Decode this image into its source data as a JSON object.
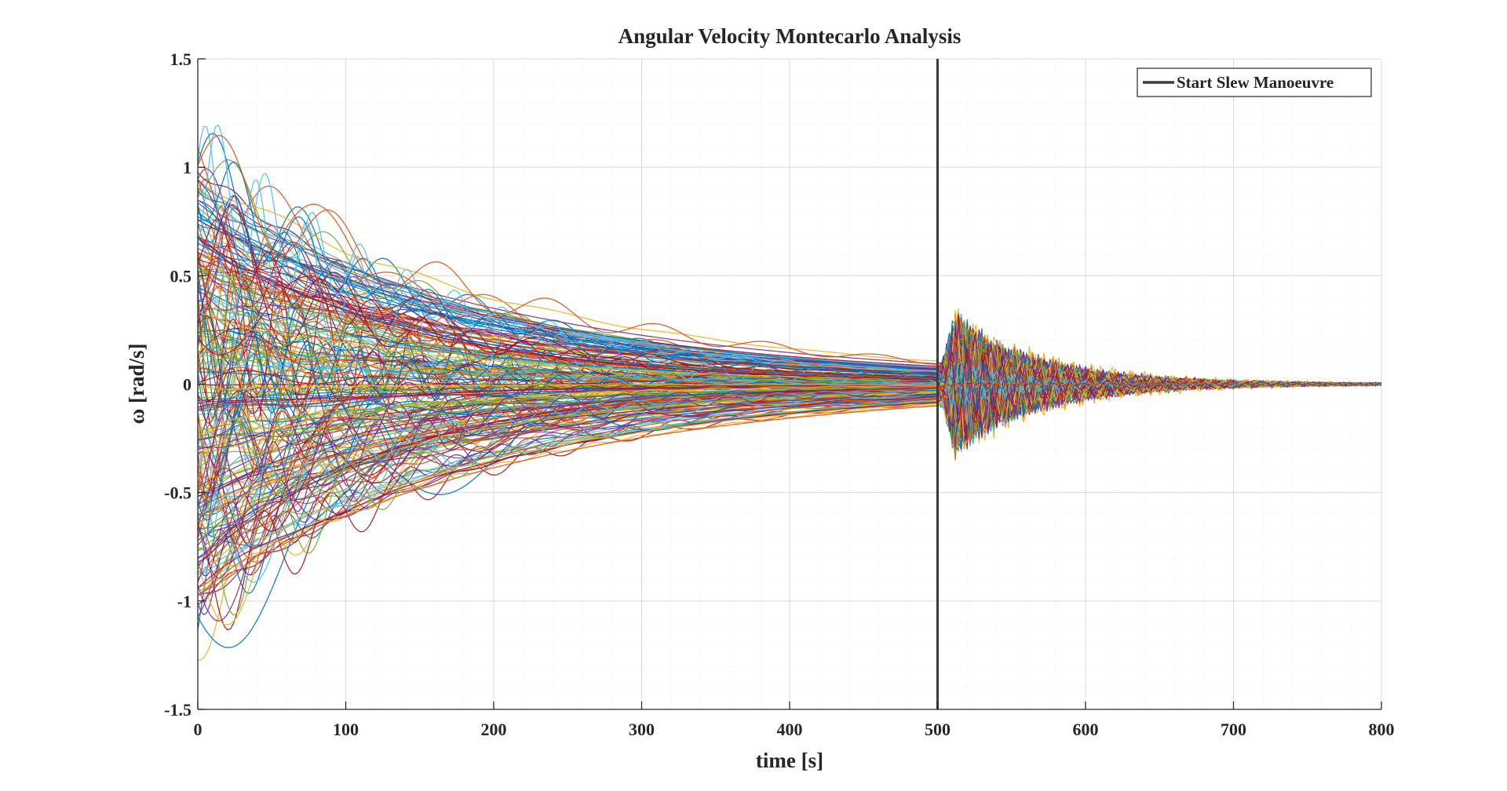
{
  "chart_data": {
    "type": "line",
    "title": "Angular Velocity Montecarlo Analysis",
    "xlabel": "time [s]",
    "ylabel": "ω [rad/s]",
    "xlim": [
      0,
      800
    ],
    "ylim": [
      -1.5,
      1.5
    ],
    "xticks": [
      0,
      100,
      200,
      300,
      400,
      500,
      600,
      700,
      800
    ],
    "yticks": [
      -1.5,
      -1,
      -0.5,
      0,
      0.5,
      1,
      1.5
    ],
    "xtick_labels": [
      "0",
      "100",
      "200",
      "300",
      "400",
      "500",
      "600",
      "700",
      "800"
    ],
    "ytick_labels": [
      "-1.5",
      "-1",
      "-0.5",
      "0",
      "0.5",
      "1",
      "1.5"
    ],
    "grid": true,
    "minor_grid": true,
    "legend_position": "top-right",
    "legend": [
      {
        "label": "Start Slew Manoeuvre",
        "color": "#3b3b3b"
      }
    ],
    "vertical_line": {
      "x": 500,
      "color": "#3b3b3b"
    },
    "series_colors": [
      "#0072bd",
      "#d95319",
      "#edb120",
      "#7e2f8e",
      "#77ac30",
      "#4dbeee",
      "#a2142f"
    ],
    "monte_carlo": {
      "description_phase_1": "damped responses decaying from about ±1.2 rad/s at t=0 to about ±0.07 rad/s at t=500 s",
      "initial_envelope": 1.2,
      "envelope_at_500": 0.07,
      "slew_peak": 0.36,
      "settled_by": 660,
      "final_value": 0
    }
  }
}
